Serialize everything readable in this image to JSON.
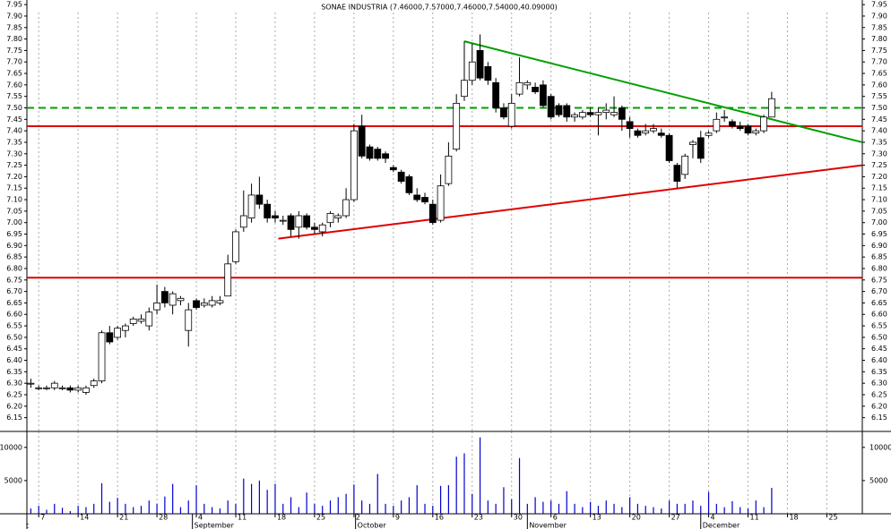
{
  "chart_data": {
    "type": "candlestick",
    "title": "SONAE INDUSTRIA (7.46000,7.57000,7.46000,7.54000,40.09000)",
    "xlim": [
      -0.5,
      105.5
    ],
    "xticks": [
      {
        "value": 1,
        "label": "7"
      },
      {
        "value": 6,
        "label": "14"
      },
      {
        "value": 11,
        "label": "21"
      },
      {
        "value": 16,
        "label": "28"
      },
      {
        "value": 21,
        "label": "4"
      },
      {
        "value": 26,
        "label": "11"
      },
      {
        "value": 31,
        "label": "18"
      },
      {
        "value": 36,
        "label": "25"
      },
      {
        "value": 41,
        "label": "2"
      },
      {
        "value": 46,
        "label": "9"
      },
      {
        "value": 51,
        "label": "16"
      },
      {
        "value": 56,
        "label": "23"
      },
      {
        "value": 61,
        "label": "30"
      },
      {
        "value": 66,
        "label": "6"
      },
      {
        "value": 71,
        "label": "13"
      },
      {
        "value": 76,
        "label": "20"
      },
      {
        "value": 81,
        "label": "27"
      },
      {
        "value": 86,
        "label": "4"
      },
      {
        "value": 91,
        "label": "11"
      },
      {
        "value": 96,
        "label": "18"
      },
      {
        "value": 101,
        "label": "25"
      }
    ],
    "month_ticks": [
      {
        "value": -0.5,
        "label": "t"
      },
      {
        "value": 20.5,
        "label": "September"
      },
      {
        "value": 41.2,
        "label": "October"
      },
      {
        "value": 63,
        "label": "November"
      },
      {
        "value": 85,
        "label": "December"
      }
    ],
    "ylim": [
      6.09,
      7.97
    ],
    "yticks": [
      7.95,
      {
        "value": 7.9,
        "label": "7.90"
      },
      7.85,
      {
        "value": 7.8,
        "label": "7.80"
      },
      7.75,
      {
        "value": 7.7,
        "label": "7.70"
      },
      7.65,
      {
        "value": 7.6,
        "label": "7.60"
      },
      7.55,
      {
        "value": 7.5,
        "label": "7.50"
      },
      7.45,
      {
        "value": 7.4,
        "label": "7.40"
      },
      7.35,
      {
        "value": 7.3,
        "label": "7.30"
      },
      7.25,
      {
        "value": 7.2,
        "label": "7.20"
      },
      7.15,
      {
        "value": 7.1,
        "label": "7.10"
      },
      7.05,
      {
        "value": 7,
        "label": "7.00"
      },
      6.95,
      {
        "value": 6.9,
        "label": "6.90"
      },
      6.85,
      {
        "value": 6.8,
        "label": "6.80"
      },
      6.75,
      {
        "value": 6.7,
        "label": "6.70"
      },
      6.65,
      {
        "value": 6.6,
        "label": "6.60"
      },
      6.55,
      {
        "value": 6.5,
        "label": "6.50"
      },
      6.45,
      {
        "value": 6.4,
        "label": "6.40"
      },
      6.35,
      {
        "value": 6.3,
        "label": "6.30"
      },
      6.25,
      {
        "value": 6.2,
        "label": "6.20"
      },
      6.15
    ],
    "volume_ylim": [
      0,
      12400
    ],
    "volume_ticks": [
      5000,
      10000
    ],
    "grid": true,
    "up_color": "#ffffff",
    "down_color": "#000000",
    "volume_color": "#0000cc",
    "ohlc": [
      [
        6.3,
        6.32,
        6.28,
        6.3
      ],
      [
        6.28,
        6.29,
        6.27,
        6.28
      ],
      [
        6.28,
        6.29,
        6.27,
        6.28
      ],
      [
        6.28,
        6.31,
        6.27,
        6.3
      ],
      [
        6.28,
        6.29,
        6.27,
        6.28
      ],
      [
        6.28,
        6.29,
        6.26,
        6.27
      ],
      [
        6.27,
        6.29,
        6.26,
        6.28
      ],
      [
        6.26,
        6.29,
        6.25,
        6.28
      ],
      [
        6.29,
        6.32,
        6.28,
        6.31
      ],
      [
        6.31,
        6.53,
        6.3,
        6.52
      ],
      [
        6.52,
        6.55,
        6.47,
        6.48
      ],
      [
        6.5,
        6.55,
        6.49,
        6.54
      ],
      [
        6.53,
        6.56,
        6.5,
        6.55
      ],
      [
        6.56,
        6.59,
        6.55,
        6.58
      ],
      [
        6.57,
        6.6,
        6.56,
        6.58
      ],
      [
        6.55,
        6.63,
        6.53,
        6.61
      ],
      [
        6.62,
        6.73,
        6.6,
        6.65
      ],
      [
        6.7,
        6.72,
        6.63,
        6.65
      ],
      [
        6.64,
        6.7,
        6.6,
        6.69
      ],
      [
        6.66,
        6.68,
        6.64,
        6.67
      ],
      [
        6.53,
        6.65,
        6.46,
        6.62
      ],
      [
        6.66,
        6.67,
        6.62,
        6.63
      ],
      [
        6.64,
        6.67,
        6.63,
        6.65
      ],
      [
        6.64,
        6.68,
        6.63,
        6.66
      ],
      [
        6.65,
        6.68,
        6.64,
        6.66
      ],
      [
        6.68,
        6.86,
        6.68,
        6.82
      ],
      [
        6.83,
        6.97,
        6.82,
        6.96
      ],
      [
        6.98,
        7.14,
        6.96,
        7.03
      ],
      [
        7.02,
        7.17,
        7.0,
        7.12
      ],
      [
        7.12,
        7.2,
        7.06,
        7.08
      ],
      [
        7.08,
        7.1,
        7.0,
        7.02
      ],
      [
        7.03,
        7.05,
        7.0,
        7.02
      ],
      [
        7.01,
        7.03,
        6.99,
        7.01
      ],
      [
        7.03,
        7.04,
        6.94,
        6.97
      ],
      [
        6.98,
        7.05,
        6.93,
        7.03
      ],
      [
        7.03,
        7.04,
        6.97,
        6.98
      ],
      [
        6.98,
        7.0,
        6.95,
        6.97
      ],
      [
        6.96,
        7.0,
        6.94,
        6.99
      ],
      [
        7.0,
        7.05,
        6.98,
        7.04
      ],
      [
        7.02,
        7.04,
        7.0,
        7.03
      ],
      [
        7.03,
        7.15,
        7.02,
        7.1
      ],
      [
        7.1,
        7.43,
        7.09,
        7.4
      ],
      [
        7.42,
        7.47,
        7.28,
        7.29
      ],
      [
        7.33,
        7.34,
        7.27,
        7.28
      ],
      [
        7.32,
        7.33,
        7.27,
        7.28
      ],
      [
        7.3,
        7.31,
        7.26,
        7.28
      ],
      [
        7.24,
        7.25,
        7.22,
        7.23
      ],
      [
        7.22,
        7.23,
        7.17,
        7.18
      ],
      [
        7.2,
        7.21,
        7.12,
        7.13
      ],
      [
        7.12,
        7.15,
        7.09,
        7.1
      ],
      [
        7.11,
        7.13,
        7.08,
        7.09
      ],
      [
        7.08,
        7.1,
        6.99,
        7.0
      ],
      [
        7.01,
        7.21,
        7.0,
        7.16
      ],
      [
        7.17,
        7.35,
        7.16,
        7.29
      ],
      [
        7.32,
        7.56,
        7.31,
        7.52
      ],
      [
        7.55,
        7.79,
        7.53,
        7.62
      ],
      [
        7.62,
        7.78,
        7.6,
        7.7
      ],
      [
        7.75,
        7.82,
        7.62,
        7.63
      ],
      [
        7.68,
        7.7,
        7.6,
        7.62
      ],
      [
        7.61,
        7.63,
        7.48,
        7.5
      ],
      [
        7.5,
        7.52,
        7.45,
        7.46
      ],
      [
        7.42,
        7.56,
        7.41,
        7.52
      ],
      [
        7.56,
        7.72,
        7.55,
        7.61
      ],
      [
        7.6,
        7.62,
        7.58,
        7.61
      ],
      [
        7.59,
        7.61,
        7.56,
        7.57
      ],
      [
        7.6,
        7.62,
        7.5,
        7.51
      ],
      [
        7.55,
        7.56,
        7.45,
        7.46
      ],
      [
        7.51,
        7.52,
        7.46,
        7.47
      ],
      [
        7.51,
        7.52,
        7.44,
        7.46
      ],
      [
        7.46,
        7.48,
        7.44,
        7.47
      ],
      [
        7.46,
        7.49,
        7.45,
        7.48
      ],
      [
        7.48,
        7.5,
        7.46,
        7.47
      ],
      [
        7.47,
        7.5,
        7.38,
        7.48
      ],
      [
        7.48,
        7.52,
        7.45,
        7.49
      ],
      [
        7.47,
        7.55,
        7.46,
        7.48
      ],
      [
        7.5,
        7.51,
        7.4,
        7.45
      ],
      [
        7.44,
        7.46,
        7.37,
        7.41
      ],
      [
        7.4,
        7.41,
        7.37,
        7.38
      ],
      [
        7.39,
        7.43,
        7.38,
        7.4
      ],
      [
        7.4,
        7.43,
        7.39,
        7.41
      ],
      [
        7.39,
        7.41,
        7.37,
        7.38
      ],
      [
        7.38,
        7.39,
        7.26,
        7.27
      ],
      [
        7.25,
        7.26,
        7.15,
        7.18
      ],
      [
        7.21,
        7.3,
        7.19,
        7.29
      ],
      [
        7.34,
        7.36,
        7.28,
        7.35
      ],
      [
        7.37,
        7.4,
        7.26,
        7.28
      ],
      [
        7.38,
        7.4,
        7.37,
        7.39
      ],
      [
        7.4,
        7.48,
        7.39,
        7.45
      ],
      [
        7.46,
        7.49,
        7.44,
        7.46
      ],
      [
        7.44,
        7.45,
        7.41,
        7.42
      ],
      [
        7.42,
        7.44,
        7.4,
        7.41
      ],
      [
        7.42,
        7.43,
        7.38,
        7.39
      ],
      [
        7.39,
        7.41,
        7.38,
        7.4
      ],
      [
        7.4,
        7.47,
        7.39,
        7.46
      ],
      [
        7.46,
        7.57,
        7.46,
        7.54
      ]
    ],
    "volume": [
      800,
      1200,
      600,
      1500,
      900,
      400,
      1200,
      1000,
      1500,
      4600,
      1800,
      2400,
      1500,
      1000,
      1200,
      2000,
      1500,
      2600,
      4500,
      1000,
      2000,
      4300,
      1500,
      1000,
      800,
      2000,
      1500,
      5300,
      4500,
      5000,
      3600,
      4500,
      1500,
      2500,
      1000,
      3200,
      1500,
      1200,
      2000,
      2500,
      3000,
      4400,
      2000,
      1500,
      6000,
      1500,
      1200,
      2000,
      2500,
      4300,
      1500,
      1200,
      4200,
      4300,
      8600,
      9100,
      3000,
      11500,
      2000,
      1500,
      4000,
      2200,
      8400,
      1500,
      2500,
      1800,
      2000,
      1500,
      3400,
      1500,
      1000,
      1800,
      1200,
      2000,
      1500,
      1000,
      2500,
      1500,
      1200,
      1000,
      800,
      2000,
      1500,
      1500,
      2000,
      1200,
      3300,
      1500,
      1000,
      1900,
      1000,
      800,
      2000,
      1000,
      3900
    ],
    "lines": [
      {
        "x": [
          -0.5,
          105.5
        ],
        "y": [
          7.42,
          7.42
        ],
        "color": "#e00000",
        "dash": false
      },
      {
        "x": [
          -0.5,
          105.5
        ],
        "y": [
          6.76,
          6.76
        ],
        "color": "#e00000",
        "dash": false
      },
      {
        "x": [
          -0.5,
          105.5
        ],
        "y": [
          7.5,
          7.5
        ],
        "color": "#00a000",
        "dash": true
      },
      {
        "x": [
          55,
          105.5
        ],
        "y": [
          7.79,
          7.35
        ],
        "color": "#00a000",
        "dash": false
      },
      {
        "x": [
          31.4,
          105.5
        ],
        "y": [
          6.93,
          7.25
        ],
        "color": "#e00000",
        "dash": false
      }
    ]
  }
}
